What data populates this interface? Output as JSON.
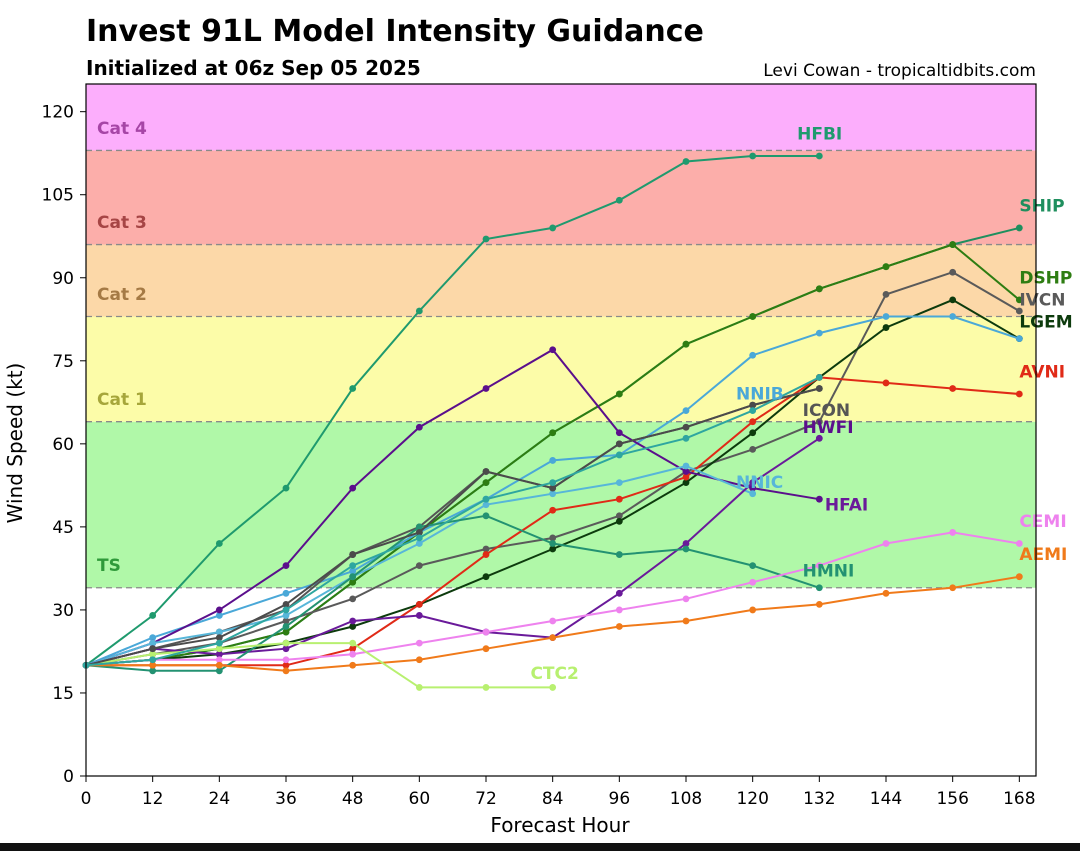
{
  "chart_data": {
    "type": "line",
    "title": "Invest 91L Model Intensity Guidance",
    "subtitle": "Initialized at 06z Sep 05 2025",
    "credit": "Levi Cowan - tropicaltidbits.com",
    "xlabel": "Forecast Hour",
    "ylabel": "Wind Speed (kt)",
    "xlim": [
      0,
      171
    ],
    "ylim": [
      0,
      125
    ],
    "xticks": [
      0,
      12,
      24,
      36,
      48,
      60,
      72,
      84,
      96,
      108,
      120,
      132,
      144,
      156,
      168
    ],
    "yticks": [
      0,
      15,
      30,
      45,
      60,
      75,
      90,
      105,
      120
    ],
    "bands": [
      {
        "name": "",
        "from": 34,
        "to": 64,
        "color": "#b0f8a8",
        "label": "TS",
        "label_y": 37,
        "label_color": "#2f9a3a"
      },
      {
        "name": "",
        "from": 64,
        "to": 83,
        "color": "#fcfca8",
        "label": "Cat 1",
        "label_y": 67,
        "label_color": "#a6a63a"
      },
      {
        "name": "",
        "from": 83,
        "to": 96,
        "color": "#fcd8a8",
        "label": "Cat 2",
        "label_y": 86,
        "label_color": "#a57a45"
      },
      {
        "name": "",
        "from": 96,
        "to": 113,
        "color": "#fcaeaa",
        "label": "Cat 3",
        "label_y": 99,
        "label_color": "#a64545"
      },
      {
        "name": "",
        "from": 113,
        "to": 125,
        "color": "#fcaefc",
        "label": "Cat 4",
        "label_y": 116,
        "label_color": "#a645a6"
      }
    ],
    "series": [
      {
        "name": "HFBI",
        "color": "#1f9a6e",
        "x": [
          0,
          12,
          24,
          36,
          48,
          60,
          72,
          84,
          96,
          108,
          120,
          132
        ],
        "values": [
          20,
          29,
          42,
          52,
          70,
          84,
          97,
          99,
          104,
          111,
          112,
          112
        ],
        "label_x": 128,
        "label_y": 115
      },
      {
        "name": "SHIP",
        "color": "#1f8f5e",
        "x": [
          0,
          12,
          24,
          36,
          48,
          60,
          72,
          84,
          96,
          108,
          120,
          132,
          144,
          156,
          168
        ],
        "values": [
          20,
          21,
          23,
          26,
          35,
          44,
          53,
          62,
          69,
          78,
          83,
          88,
          92,
          96,
          99
        ],
        "label_x": 168,
        "label_y": 102
      },
      {
        "name": "DSHP",
        "color": "#2e7d12",
        "x": [
          0,
          12,
          24,
          36,
          48,
          60,
          72,
          84,
          96,
          108,
          120,
          132,
          144,
          156,
          168
        ],
        "values": [
          20,
          21,
          23,
          26,
          35,
          44,
          53,
          62,
          69,
          78,
          83,
          88,
          92,
          96,
          86
        ],
        "label_x": 168,
        "label_y": 89
      },
      {
        "name": "IVCN",
        "color": "#5a5a5a",
        "x": [
          0,
          12,
          24,
          36,
          48,
          60,
          72,
          84,
          96,
          108,
          120,
          132,
          144,
          156,
          168
        ],
        "values": [
          20,
          22,
          24,
          28,
          32,
          38,
          41,
          43,
          47,
          55,
          59,
          64,
          87,
          91,
          84
        ],
        "label_x": 168,
        "label_y": 85
      },
      {
        "name": "LGEM",
        "color": "#0d3b0d",
        "x": [
          0,
          12,
          24,
          36,
          48,
          60,
          72,
          84,
          96,
          108,
          120,
          132,
          144,
          156,
          168
        ],
        "values": [
          20,
          21,
          22,
          24,
          27,
          31,
          36,
          41,
          46,
          53,
          62,
          72,
          81,
          86,
          79
        ],
        "label_x": 168,
        "label_y": 81
      },
      {
        "name": "AVNI",
        "color": "#e02a17",
        "x": [
          0,
          12,
          24,
          36,
          48,
          60,
          72,
          84,
          96,
          108,
          120,
          132,
          144,
          156,
          168
        ],
        "values": [
          20,
          20,
          20,
          20,
          23,
          31,
          40,
          48,
          50,
          54,
          64,
          72,
          71,
          70,
          69
        ],
        "label_x": 168,
        "label_y": 72
      },
      {
        "name": "NNIB",
        "color": "#4aa8d8",
        "x": [
          0,
          12,
          24,
          36,
          48,
          60,
          72,
          84,
          96,
          108,
          120,
          132,
          144,
          156,
          168
        ],
        "values": [
          20,
          25,
          29,
          33,
          37,
          44,
          50,
          57,
          58,
          66,
          76,
          80,
          83,
          83,
          79
        ],
        "label_x": 117,
        "label_y": 68
      },
      {
        "name": "ICON",
        "color": "#555555",
        "x": [
          0,
          12,
          24,
          36,
          48,
          60,
          72,
          84,
          96,
          108,
          120,
          132
        ],
        "values": [
          20,
          23,
          26,
          30,
          40,
          45,
          55,
          52,
          60,
          63,
          67,
          70
        ],
        "label_x": 129,
        "label_y": 65
      },
      {
        "name": "HWFI",
        "color": "#5b0f8c",
        "x": [
          0,
          12,
          24,
          36,
          48,
          60,
          72,
          84,
          96,
          108,
          120,
          132
        ],
        "values": [
          20,
          24,
          30,
          38,
          52,
          63,
          70,
          77,
          62,
          55,
          52,
          50
        ],
        "label_x": 129,
        "label_y": 62
      },
      {
        "name": "NNIC",
        "color": "#57b6d9",
        "x": [
          0,
          12,
          24,
          36,
          48,
          60,
          72,
          84,
          96,
          108,
          120
        ],
        "values": [
          20,
          24,
          26,
          29,
          36,
          42,
          49,
          51,
          53,
          56,
          51
        ],
        "label_x": 117,
        "label_y": 52
      },
      {
        "name": "HFAI",
        "color": "#6a1a9a",
        "x": [
          0,
          12,
          24,
          36,
          48,
          60,
          72,
          84,
          96,
          108,
          120,
          132
        ],
        "values": [
          20,
          23,
          22,
          23,
          28,
          29,
          26,
          25,
          33,
          42,
          53,
          61
        ],
        "label_x": 133,
        "label_y": 48
      },
      {
        "name": "HMNI",
        "color": "#239272",
        "x": [
          0,
          12,
          24,
          36,
          48,
          60,
          72,
          84,
          96,
          108,
          120,
          132
        ],
        "values": [
          20,
          19,
          19,
          27,
          36,
          45,
          47,
          42,
          40,
          41,
          38,
          34
        ],
        "label_x": 129,
        "label_y": 36
      },
      {
        "name": "CEMI",
        "color": "#ee82ee",
        "x": [
          0,
          12,
          24,
          36,
          48,
          60,
          72,
          84,
          96,
          108,
          120,
          132,
          144,
          156,
          168
        ],
        "values": [
          20,
          21,
          21,
          21,
          22,
          24,
          26,
          28,
          30,
          32,
          35,
          38,
          42,
          44,
          42
        ],
        "label_x": 168,
        "label_y": 45
      },
      {
        "name": "AEMI",
        "color": "#f07a1a",
        "x": [
          0,
          12,
          24,
          36,
          48,
          60,
          72,
          84,
          96,
          108,
          120,
          132,
          144,
          156,
          168
        ],
        "values": [
          20,
          20,
          20,
          19,
          20,
          21,
          23,
          25,
          27,
          28,
          30,
          31,
          33,
          34,
          36
        ],
        "label_x": 168,
        "label_y": 39
      },
      {
        "name": "CTC2",
        "color": "#b8f070",
        "x": [
          0,
          12,
          24,
          36,
          48,
          60,
          72,
          84
        ],
        "values": [
          20,
          22,
          23,
          24,
          24,
          16,
          16,
          16
        ],
        "label_x": 80,
        "label_y": 17.5
      },
      {
        "name": "",
        "color": "#4b4b4b",
        "x": [
          0,
          12,
          24,
          36,
          48,
          60,
          72,
          84,
          96,
          108,
          120,
          132
        ],
        "values": [
          20,
          23,
          25,
          31,
          40,
          44,
          55,
          52,
          60,
          63,
          67,
          70
        ]
      },
      {
        "name": "",
        "color": "#2ea6a0",
        "x": [
          0,
          12,
          24,
          36,
          48,
          60,
          72,
          84,
          96,
          108,
          120,
          132
        ],
        "values": [
          20,
          21,
          24,
          30,
          38,
          43,
          50,
          53,
          58,
          61,
          66,
          72
        ]
      }
    ]
  }
}
